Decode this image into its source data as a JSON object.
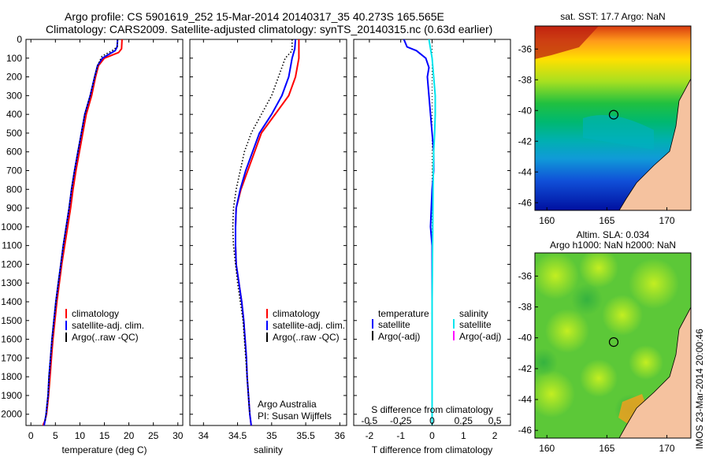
{
  "title": {
    "line1": "Argo profile: CS 5901619_252 15-Mar-2014 20140317_35 40.273S 165.565E",
    "line2": "Climatology: CARS2009. Satellite-adjusted climatology: synTS_20140315.nc (0.63d earlier)"
  },
  "colors": {
    "climatology": "#ff0000",
    "satellite": "#0000ff",
    "argo": "#000000",
    "salinity_satellite": "#00e5ee",
    "salinity_argo": "#ff00ff",
    "land": "#f5c29f"
  },
  "depth_axis": {
    "ticks": [
      0,
      100,
      200,
      300,
      400,
      500,
      600,
      700,
      800,
      900,
      1000,
      1100,
      1200,
      1300,
      1400,
      1500,
      1600,
      1700,
      1800,
      1900,
      2000
    ],
    "ylim": [
      0,
      2060
    ]
  },
  "chart_data": [
    {
      "type": "line",
      "xlabel": "temperature (deg C)",
      "xlim": [
        -1,
        31
      ],
      "xticks": [
        0,
        5,
        10,
        15,
        20,
        25,
        30
      ],
      "legend": [
        "climatology",
        "satellite-adj. clim.",
        "Argo(..raw -QC)"
      ],
      "series": [
        {
          "name": "climatology",
          "color": "climatology",
          "dotted": false,
          "x": [
            18.6,
            18.5,
            17.9,
            15.0,
            13.8,
            13.2,
            12.4,
            11.3,
            10.6,
            9.9,
            9.2,
            8.6,
            8.1,
            7.5,
            6.9,
            6.3,
            5.8,
            5.3,
            4.9,
            4.5,
            4.2,
            3.9,
            3.6,
            3.4,
            3.2,
            3.0,
            2.8,
            2.6,
            2.5
          ],
          "y": [
            0,
            50,
            70,
            100,
            140,
            200,
            300,
            400,
            500,
            600,
            700,
            800,
            900,
            1000,
            1100,
            1200,
            1300,
            1400,
            1500,
            1600,
            1700,
            1800,
            1900,
            1950,
            2000,
            2020,
            2040,
            2050,
            2060
          ]
        },
        {
          "name": "satellite-adj. clim.",
          "color": "satellite",
          "dotted": false,
          "x": [
            17.7,
            17.6,
            17.2,
            14.6,
            13.6,
            13.0,
            12.1,
            11.0,
            10.3,
            9.6,
            8.9,
            8.3,
            7.8,
            7.2,
            6.6,
            6.1,
            5.6,
            5.1,
            4.7,
            4.3,
            4.0,
            3.7,
            3.5,
            3.3,
            3.1,
            2.9,
            2.7
          ],
          "y": [
            0,
            40,
            60,
            100,
            140,
            200,
            300,
            400,
            500,
            600,
            700,
            800,
            900,
            1000,
            1100,
            1200,
            1300,
            1400,
            1500,
            1600,
            1700,
            1800,
            1900,
            1950,
            2000,
            2030,
            2060
          ]
        },
        {
          "name": "Argo(..raw -QC)",
          "color": "argo",
          "dotted": true,
          "x": [
            17.7,
            17.6,
            16.6,
            14.5,
            13.6,
            13.0,
            12.1,
            11.0,
            10.3,
            9.6,
            8.9,
            8.3,
            7.8,
            7.2,
            6.6,
            6.1,
            5.6,
            5.1,
            4.7,
            4.3,
            4.0,
            3.7,
            3.5,
            3.3,
            3.1,
            2.9
          ],
          "y": [
            0,
            40,
            60,
            90,
            140,
            200,
            300,
            400,
            500,
            600,
            700,
            800,
            900,
            1000,
            1100,
            1200,
            1300,
            1400,
            1500,
            1600,
            1700,
            1800,
            1900,
            1950,
            2000,
            2040
          ]
        }
      ]
    },
    {
      "type": "line",
      "xlabel": "salinity",
      "xlim": [
        33.8,
        36.1
      ],
      "xticks": [
        34,
        34.5,
        35,
        35.5,
        36
      ],
      "legend": [
        "climatology",
        "satellite-adj. clim.",
        "Argo(..raw -QC)"
      ],
      "credit": [
        "Argo Australia",
        "PI: Susan Wijffels"
      ],
      "series": [
        {
          "name": "climatology",
          "color": "climatology",
          "dotted": false,
          "x": [
            35.4,
            35.4,
            35.4,
            35.35,
            35.25,
            35.05,
            34.85,
            34.75,
            34.65,
            34.55,
            34.48,
            34.47,
            34.47,
            34.48,
            34.52,
            34.56,
            34.59,
            34.61,
            34.63,
            34.64,
            34.66,
            34.68,
            34.7
          ],
          "y": [
            0,
            50,
            100,
            200,
            300,
            400,
            500,
            600,
            700,
            800,
            900,
            1000,
            1100,
            1200,
            1300,
            1400,
            1500,
            1600,
            1700,
            1800,
            1900,
            2000,
            2060
          ]
        },
        {
          "name": "satellite-adj. clim.",
          "color": "satellite",
          "dotted": false,
          "x": [
            35.35,
            35.34,
            35.3,
            35.25,
            35.15,
            35.0,
            34.82,
            34.72,
            34.62,
            34.54,
            34.48,
            34.47,
            34.47,
            34.48,
            34.52,
            34.56,
            34.59,
            34.61,
            34.63,
            34.64,
            34.66,
            34.68,
            34.7
          ],
          "y": [
            0,
            50,
            100,
            200,
            300,
            400,
            500,
            600,
            700,
            800,
            900,
            1000,
            1100,
            1200,
            1300,
            1400,
            1500,
            1600,
            1700,
            1800,
            1900,
            2000,
            2060
          ]
        },
        {
          "name": "Argo(..raw -QC)",
          "color": "argo",
          "dotted": true,
          "x": [
            35.3,
            35.3,
            35.2,
            35.1,
            35.0,
            34.85,
            34.7,
            34.6,
            34.54,
            34.48,
            34.44,
            34.43,
            34.44,
            34.47,
            34.5,
            34.54,
            34.58,
            34.6,
            34.62,
            34.64,
            34.66,
            34.68
          ],
          "y": [
            0,
            60,
            100,
            200,
            300,
            400,
            500,
            600,
            700,
            800,
            900,
            1000,
            1100,
            1200,
            1300,
            1400,
            1500,
            1600,
            1700,
            1800,
            1900,
            2000
          ]
        }
      ]
    },
    {
      "type": "line",
      "xlabel": "T difference from climatology",
      "xlim": [
        -2.5,
        2.5
      ],
      "xticks": [
        -2,
        -1,
        0,
        1,
        2
      ],
      "top_label": "S difference from climatology",
      "top_ticks": [
        {
          "label": "-0.5",
          "t": -2
        },
        {
          "label": "-0.25",
          "t": -1
        },
        {
          "label": "0",
          "t": 0
        },
        {
          "label": "0.25",
          "t": 1
        },
        {
          "label": "0.5",
          "t": 2
        }
      ],
      "legend_left_title": "temperature",
      "legend_left": [
        "satellite",
        "Argo(-adj)"
      ],
      "legend_right_title": "salinity",
      "legend_right": [
        "satellite",
        "Argo(-adj)"
      ],
      "zero_line": true,
      "series": [
        {
          "name": "satellite",
          "color": "satellite",
          "dotted": false,
          "x": [
            -0.9,
            -0.8,
            -0.5,
            -0.2,
            -0.1,
            -0.15,
            -0.1,
            -0.05,
            0,
            0.05,
            0.05,
            0.0,
            -0.05,
            0,
            0,
            0,
            0,
            0,
            0,
            0,
            0
          ],
          "y": [
            0,
            40,
            60,
            100,
            150,
            200,
            300,
            400,
            500,
            600,
            700,
            800,
            1000,
            1100,
            1200,
            1400,
            1600,
            1800,
            1900,
            2000,
            2060
          ]
        },
        {
          "name": "satellite",
          "color": "salinity_satellite",
          "dotted": false,
          "x": [
            -0.1,
            -0.05,
            0.0,
            0.05,
            0.1,
            0.1,
            0.08,
            0.05,
            0.03,
            0.02,
            0.01,
            0,
            0,
            0,
            0
          ],
          "y": [
            0,
            50,
            100,
            200,
            300,
            400,
            500,
            600,
            800,
            1000,
            1200,
            1400,
            1600,
            1800,
            2060
          ]
        }
      ]
    },
    {
      "type": "heatmap",
      "title": "sat. SST: 17.7 Argo: NaN",
      "xlim": [
        159,
        172
      ],
      "ylim": [
        -46.5,
        -34.5
      ],
      "xticks": [
        160,
        165,
        170
      ],
      "yticks": [
        -36,
        -38,
        -40,
        -42,
        -44,
        -46
      ],
      "marker": {
        "lon": 165.565,
        "lat": -40.273
      }
    },
    {
      "type": "heatmap",
      "title": "Altim. SLA: 0.034",
      "subtitle": "Argo h1000: NaN h2000: NaN",
      "xlim": [
        159,
        172
      ],
      "ylim": [
        -46.5,
        -34.5
      ],
      "xticks": [
        160,
        165,
        170
      ],
      "yticks": [
        -36,
        -38,
        -40,
        -42,
        -44,
        -46
      ],
      "marker": {
        "lon": 165.565,
        "lat": -40.273
      }
    }
  ],
  "stamp": "IMOS 23-Mar-2014 20:00:46"
}
